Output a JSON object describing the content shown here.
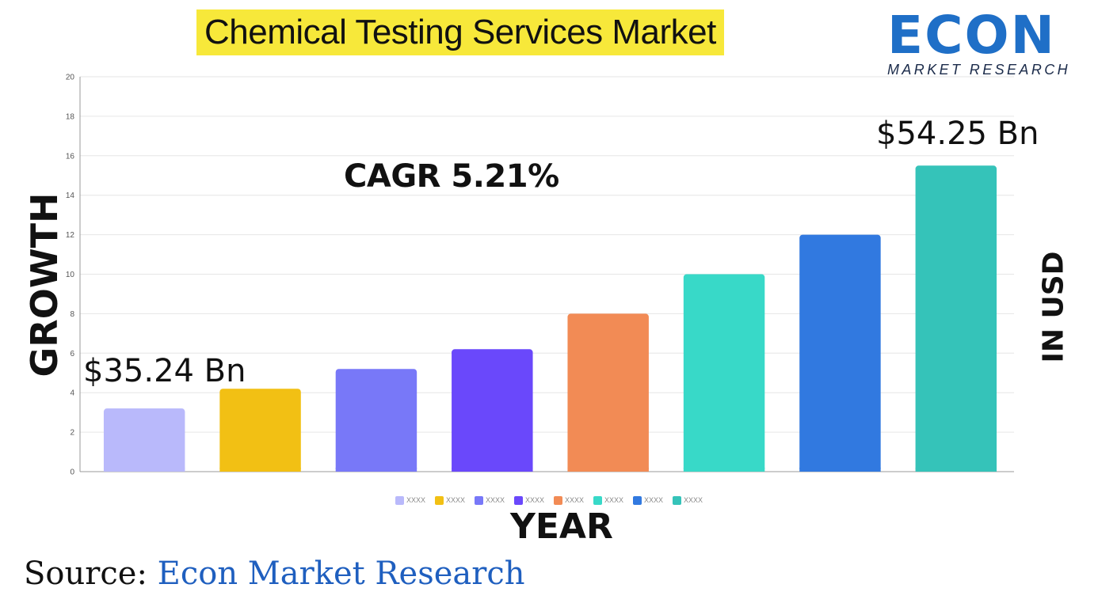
{
  "title": "Chemical Testing Services Market",
  "logo": {
    "word": "ECON",
    "subtitle": "MARKET RESEARCH"
  },
  "annotations": {
    "cagr": "CAGR 5.21%",
    "first_value": "$35.24 Bn",
    "last_value": "$54.25 Bn"
  },
  "source": {
    "prefix": "Source:",
    "name": "Econ Market Research"
  },
  "chart_data": {
    "type": "bar",
    "categories": [
      "XXXX",
      "XXXX",
      "XXXX",
      "XXXX",
      "XXXX",
      "XXXX",
      "XXXX",
      "XXXX"
    ],
    "values": [
      3.2,
      4.2,
      5.2,
      6.2,
      8,
      10,
      12,
      15.5
    ],
    "colors": [
      "#b9b9fb",
      "#f2c014",
      "#7878f8",
      "#6a48fb",
      "#f28b55",
      "#38d9c8",
      "#3179e0",
      "#35c3b9"
    ],
    "ylabel": "GROWTH",
    "ylabel_right": "IN USD",
    "xlabel": "YEAR",
    "ylim": [
      0,
      20
    ],
    "yticks": [
      0,
      2,
      4,
      6,
      8,
      10,
      12,
      14,
      16,
      18,
      20
    ],
    "grid": true,
    "legend": "bottom-center"
  }
}
